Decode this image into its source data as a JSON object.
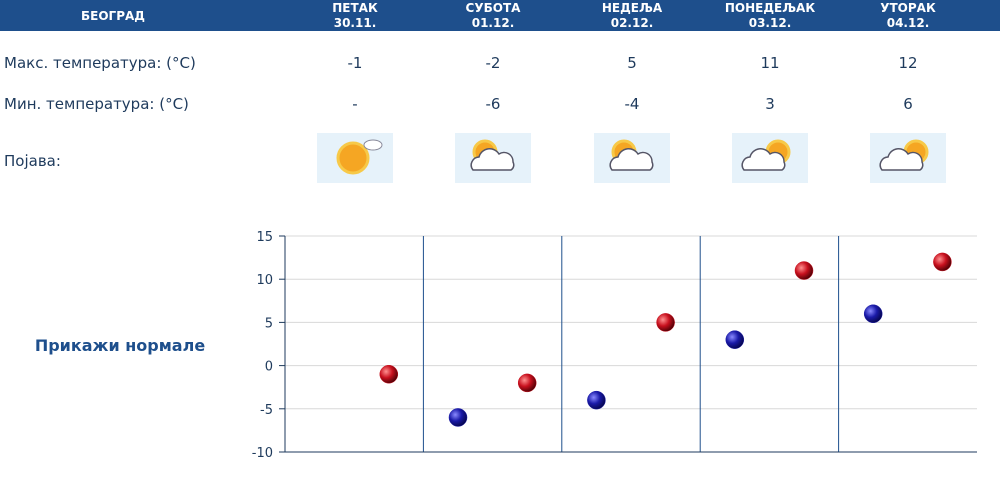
{
  "header": {
    "city": "БЕОГРАД",
    "days": [
      {
        "name": "ПЕТАК",
        "date": "30.11."
      },
      {
        "name": "СУБОТА",
        "date": "01.12."
      },
      {
        "name": "НЕДЕЉА",
        "date": "02.12."
      },
      {
        "name": "ПОНЕДЕЉАК",
        "date": "03.12."
      },
      {
        "name": "УТОРАК",
        "date": "04.12."
      }
    ]
  },
  "rows": {
    "max_label": "Макс. температура: (°C)",
    "min_label": "Мин. температура: (°C)",
    "phenomenon_label": "Појава:",
    "missing": "-"
  },
  "link": "Прикажи нормале",
  "chart_data": {
    "type": "scatter",
    "ylim": [
      -10,
      15
    ],
    "yticks": [
      15,
      10,
      5,
      0,
      -5,
      -10
    ],
    "grid": true,
    "series": [
      {
        "color": "#1a1aa8",
        "values": [
          null,
          -6,
          -4,
          3,
          6
        ]
      },
      {
        "color": "#c8101e",
        "values": [
          -1,
          -2,
          5,
          11,
          12
        ]
      }
    ]
  }
}
